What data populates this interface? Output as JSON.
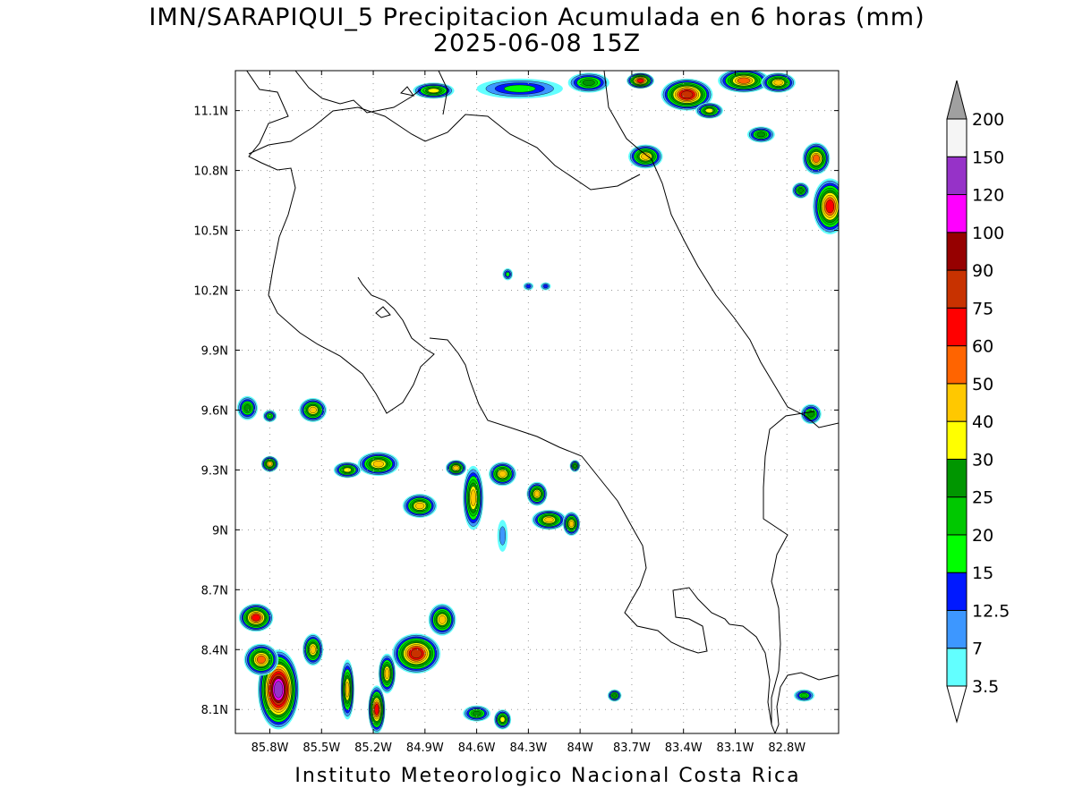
{
  "title_line1": "IMN/SARAPIQUI_5 Precipitacion Acumulada en 6 horas (mm)",
  "title_line2": "2025-06-08 15Z",
  "footer": "Instituto Meteorologico Nacional Costa Rica",
  "map": {
    "lon_range": [
      -86.0,
      -82.5
    ],
    "lat_range": [
      7.98,
      11.3
    ],
    "lon_ticks": [
      {
        "value": -85.8,
        "label": "85.8W"
      },
      {
        "value": -85.5,
        "label": "85.5W"
      },
      {
        "value": -85.2,
        "label": "85.2W"
      },
      {
        "value": -84.9,
        "label": "84.9W"
      },
      {
        "value": -84.6,
        "label": "84.6W"
      },
      {
        "value": -84.3,
        "label": "84.3W"
      },
      {
        "value": -84.0,
        "label": "84W"
      },
      {
        "value": -83.7,
        "label": "83.7W"
      },
      {
        "value": -83.4,
        "label": "83.4W"
      },
      {
        "value": -83.1,
        "label": "83.1W"
      },
      {
        "value": -82.8,
        "label": "82.8W"
      }
    ],
    "lat_ticks": [
      {
        "value": 11.1,
        "label": "11.1N"
      },
      {
        "value": 10.8,
        "label": "10.8N"
      },
      {
        "value": 10.5,
        "label": "10.5N"
      },
      {
        "value": 10.2,
        "label": "10.2N"
      },
      {
        "value": 9.9,
        "label": "9.9N"
      },
      {
        "value": 9.6,
        "label": "9.6N"
      },
      {
        "value": 9.3,
        "label": "9.3N"
      },
      {
        "value": 9.0,
        "label": "9N"
      },
      {
        "value": 8.7,
        "label": "8.7N"
      },
      {
        "value": 8.4,
        "label": "8.4N"
      },
      {
        "value": 8.1,
        "label": "8.1N"
      }
    ],
    "grid": true
  },
  "colorbar": {
    "levels": [
      "3.5",
      "7",
      "12.5",
      "15",
      "20",
      "25",
      "30",
      "40",
      "50",
      "60",
      "75",
      "90",
      "100",
      "120",
      "150",
      "200"
    ],
    "colors": [
      "#62ffff",
      "#3d97ff",
      "#0019ff",
      "#00ff00",
      "#00c800",
      "#009600",
      "#ffff00",
      "#ffc800",
      "#ff6400",
      "#ff0000",
      "#c83200",
      "#960000",
      "#ff00ff",
      "#9632c8",
      "#f5f5f5",
      "#a0a0a0"
    ]
  },
  "rain_cells": [
    {
      "lon": -84.85,
      "lat": 11.2,
      "rx": 0.12,
      "ry": 0.04,
      "peak": 30
    },
    {
      "lon": -84.35,
      "lat": 11.21,
      "rx": 0.25,
      "ry": 0.05,
      "peak": 15
    },
    {
      "lon": -83.95,
      "lat": 11.24,
      "rx": 0.12,
      "ry": 0.05,
      "peak": 25
    },
    {
      "lon": -83.65,
      "lat": 11.25,
      "rx": 0.08,
      "ry": 0.04,
      "peak": 60
    },
    {
      "lon": -83.38,
      "lat": 11.18,
      "rx": 0.15,
      "ry": 0.08,
      "peak": 75
    },
    {
      "lon": -83.05,
      "lat": 11.25,
      "rx": 0.15,
      "ry": 0.06,
      "peak": 50
    },
    {
      "lon": -82.85,
      "lat": 11.24,
      "rx": 0.1,
      "ry": 0.05,
      "peak": 40
    },
    {
      "lon": -83.25,
      "lat": 11.1,
      "rx": 0.08,
      "ry": 0.04,
      "peak": 30
    },
    {
      "lon": -82.95,
      "lat": 10.98,
      "rx": 0.08,
      "ry": 0.04,
      "peak": 25
    },
    {
      "lon": -83.62,
      "lat": 10.87,
      "rx": 0.1,
      "ry": 0.06,
      "peak": 40
    },
    {
      "lon": -82.63,
      "lat": 10.86,
      "rx": 0.08,
      "ry": 0.08,
      "peak": 50
    },
    {
      "lon": -82.55,
      "lat": 10.62,
      "rx": 0.1,
      "ry": 0.14,
      "peak": 60
    },
    {
      "lon": -82.72,
      "lat": 10.7,
      "rx": 0.05,
      "ry": 0.04,
      "peak": 25
    },
    {
      "lon": -84.42,
      "lat": 10.28,
      "rx": 0.03,
      "ry": 0.03,
      "peak": 15
    },
    {
      "lon": -84.3,
      "lat": 10.22,
      "rx": 0.03,
      "ry": 0.02,
      "peak": 12.5
    },
    {
      "lon": -84.2,
      "lat": 10.22,
      "rx": 0.03,
      "ry": 0.02,
      "peak": 12.5
    },
    {
      "lon": -82.66,
      "lat": 9.58,
      "rx": 0.06,
      "ry": 0.05,
      "peak": 25
    },
    {
      "lon": -85.55,
      "lat": 9.6,
      "rx": 0.08,
      "ry": 0.06,
      "peak": 40
    },
    {
      "lon": -85.93,
      "lat": 9.61,
      "rx": 0.06,
      "ry": 0.06,
      "peak": 25
    },
    {
      "lon": -85.8,
      "lat": 9.57,
      "rx": 0.04,
      "ry": 0.03,
      "peak": 20
    },
    {
      "lon": -85.8,
      "lat": 9.33,
      "rx": 0.05,
      "ry": 0.04,
      "peak": 40
    },
    {
      "lon": -85.17,
      "lat": 9.33,
      "rx": 0.12,
      "ry": 0.06,
      "peak": 40
    },
    {
      "lon": -85.35,
      "lat": 9.3,
      "rx": 0.08,
      "ry": 0.04,
      "peak": 30
    },
    {
      "lon": -84.93,
      "lat": 9.12,
      "rx": 0.1,
      "ry": 0.06,
      "peak": 40
    },
    {
      "lon": -84.72,
      "lat": 9.31,
      "rx": 0.06,
      "ry": 0.04,
      "peak": 40
    },
    {
      "lon": -84.62,
      "lat": 9.16,
      "rx": 0.06,
      "ry": 0.16,
      "peak": 40
    },
    {
      "lon": -84.45,
      "lat": 9.28,
      "rx": 0.08,
      "ry": 0.06,
      "peak": 40
    },
    {
      "lon": -84.25,
      "lat": 9.18,
      "rx": 0.06,
      "ry": 0.06,
      "peak": 40
    },
    {
      "lon": -84.18,
      "lat": 9.05,
      "rx": 0.1,
      "ry": 0.05,
      "peak": 40
    },
    {
      "lon": -84.05,
      "lat": 9.03,
      "rx": 0.05,
      "ry": 0.06,
      "peak": 40
    },
    {
      "lon": -84.03,
      "lat": 9.32,
      "rx": 0.03,
      "ry": 0.03,
      "peak": 25
    },
    {
      "lon": -84.45,
      "lat": 8.97,
      "rx": 0.03,
      "ry": 0.08,
      "peak": 7
    },
    {
      "lon": -85.88,
      "lat": 8.56,
      "rx": 0.1,
      "ry": 0.07,
      "peak": 60
    },
    {
      "lon": -85.75,
      "lat": 8.2,
      "rx": 0.12,
      "ry": 0.2,
      "peak": 120
    },
    {
      "lon": -85.85,
      "lat": 8.35,
      "rx": 0.1,
      "ry": 0.08,
      "peak": 50
    },
    {
      "lon": -85.55,
      "lat": 8.4,
      "rx": 0.06,
      "ry": 0.08,
      "peak": 40
    },
    {
      "lon": -85.35,
      "lat": 8.2,
      "rx": 0.04,
      "ry": 0.15,
      "peak": 40
    },
    {
      "lon": -85.18,
      "lat": 8.1,
      "rx": 0.05,
      "ry": 0.12,
      "peak": 60
    },
    {
      "lon": -85.12,
      "lat": 8.28,
      "rx": 0.05,
      "ry": 0.1,
      "peak": 40
    },
    {
      "lon": -84.95,
      "lat": 8.38,
      "rx": 0.14,
      "ry": 0.1,
      "peak": 75
    },
    {
      "lon": -84.8,
      "lat": 8.55,
      "rx": 0.08,
      "ry": 0.08,
      "peak": 40
    },
    {
      "lon": -84.6,
      "lat": 8.08,
      "rx": 0.08,
      "ry": 0.04,
      "peak": 25
    },
    {
      "lon": -84.45,
      "lat": 8.05,
      "rx": 0.05,
      "ry": 0.05,
      "peak": 30
    },
    {
      "lon": -83.8,
      "lat": 8.17,
      "rx": 0.04,
      "ry": 0.03,
      "peak": 25
    },
    {
      "lon": -82.7,
      "lat": 8.17,
      "rx": 0.06,
      "ry": 0.03,
      "peak": 20
    }
  ]
}
